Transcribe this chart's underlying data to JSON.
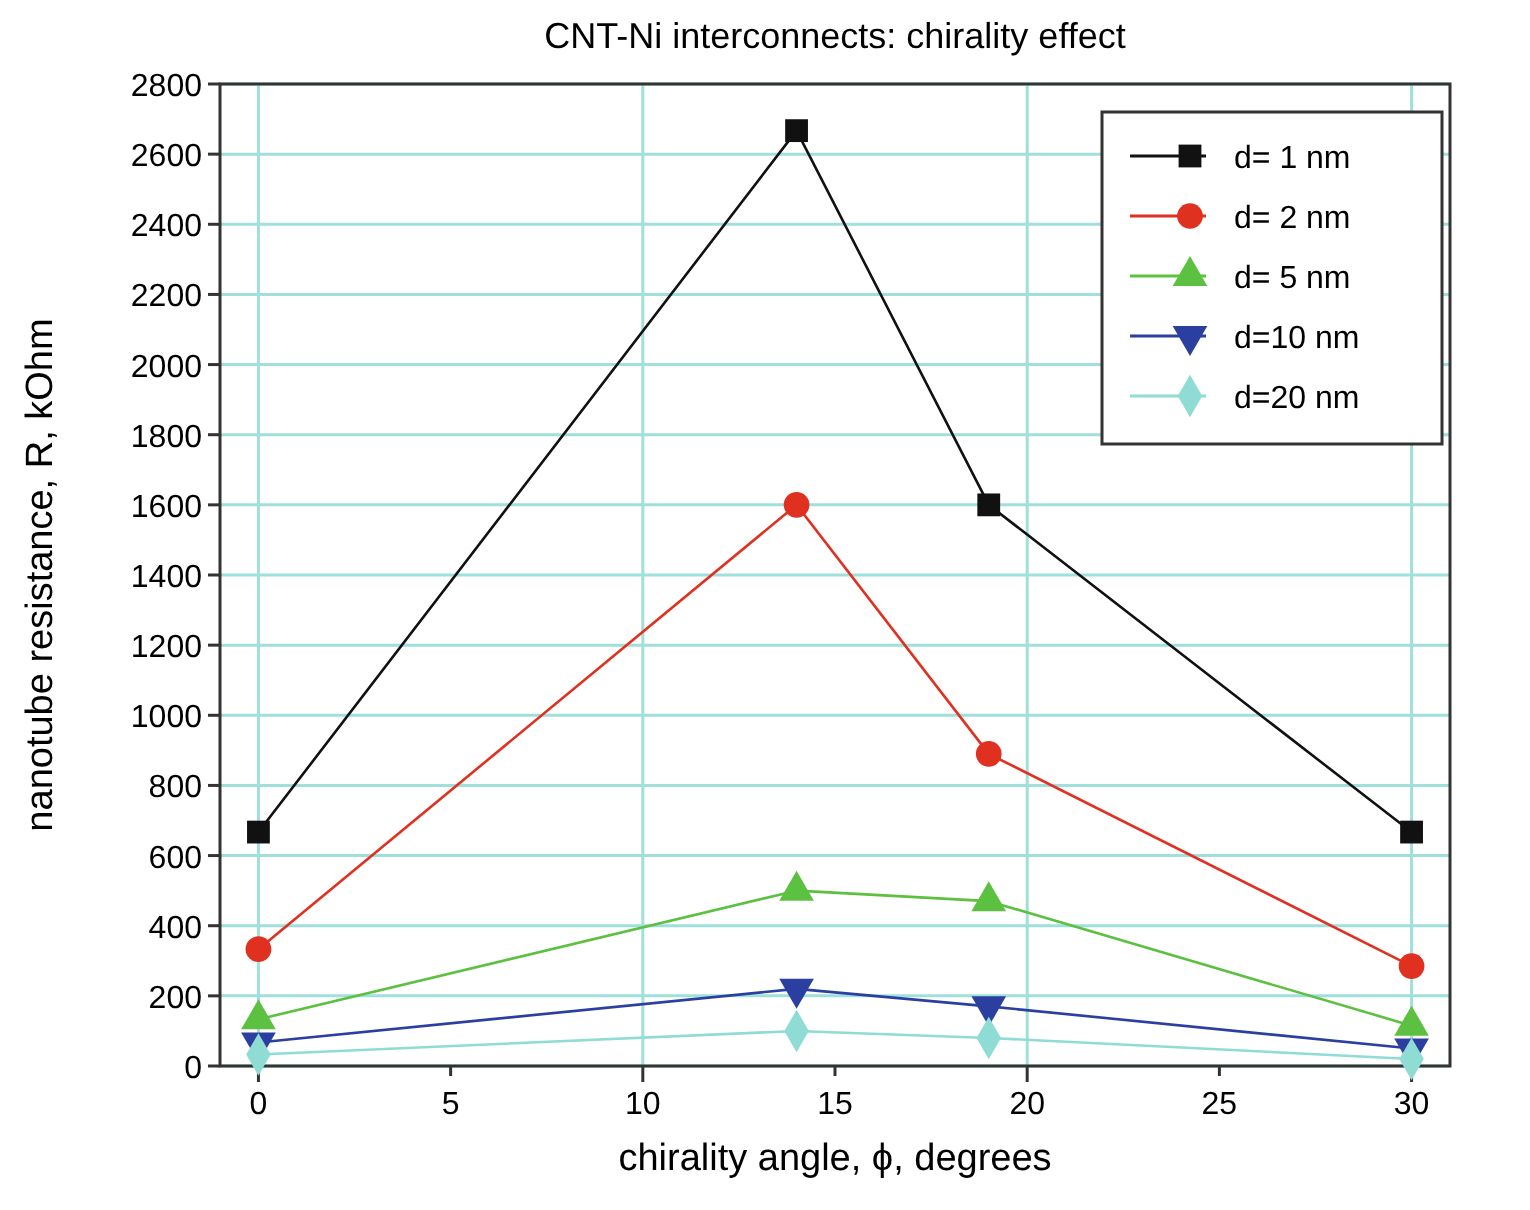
{
  "chart_data": {
    "type": "line",
    "title": "CNT-Ni interconnects: chirality effect",
    "xlabel": "chirality angle, ϕ, degrees",
    "ylabel": "nanotube resistance, R, kOhm",
    "x": [
      0,
      14,
      19,
      30
    ],
    "series": [
      {
        "name": "d= 1 nm",
        "color": "#111111",
        "marker": "square",
        "values": [
          667,
          2667,
          1600,
          667
        ]
      },
      {
        "name": "d= 2 nm",
        "color": "#e03020",
        "marker": "circle",
        "values": [
          333,
          1600,
          890,
          285
        ]
      },
      {
        "name": "d= 5 nm",
        "color": "#5cc040",
        "marker": "triangle",
        "values": [
          133,
          500,
          470,
          115
        ]
      },
      {
        "name": "d=10 nm",
        "color": "#2a3fa0",
        "marker": "triangle-down",
        "values": [
          67,
          220,
          170,
          50
        ]
      },
      {
        "name": "d=20 nm",
        "color": "#8edcd4",
        "marker": "diamond",
        "values": [
          33,
          100,
          80,
          20
        ]
      }
    ],
    "xlim": [
      -1,
      31
    ],
    "xticks": [
      0,
      5,
      10,
      15,
      20,
      25,
      30
    ],
    "ylim": [
      0,
      2800
    ],
    "yticks": [
      0,
      200,
      400,
      600,
      800,
      1000,
      1200,
      1400,
      1600,
      1800,
      2000,
      2200,
      2400,
      2600,
      2800
    ],
    "grid": true,
    "legend": "top right",
    "line_style": "solid"
  }
}
